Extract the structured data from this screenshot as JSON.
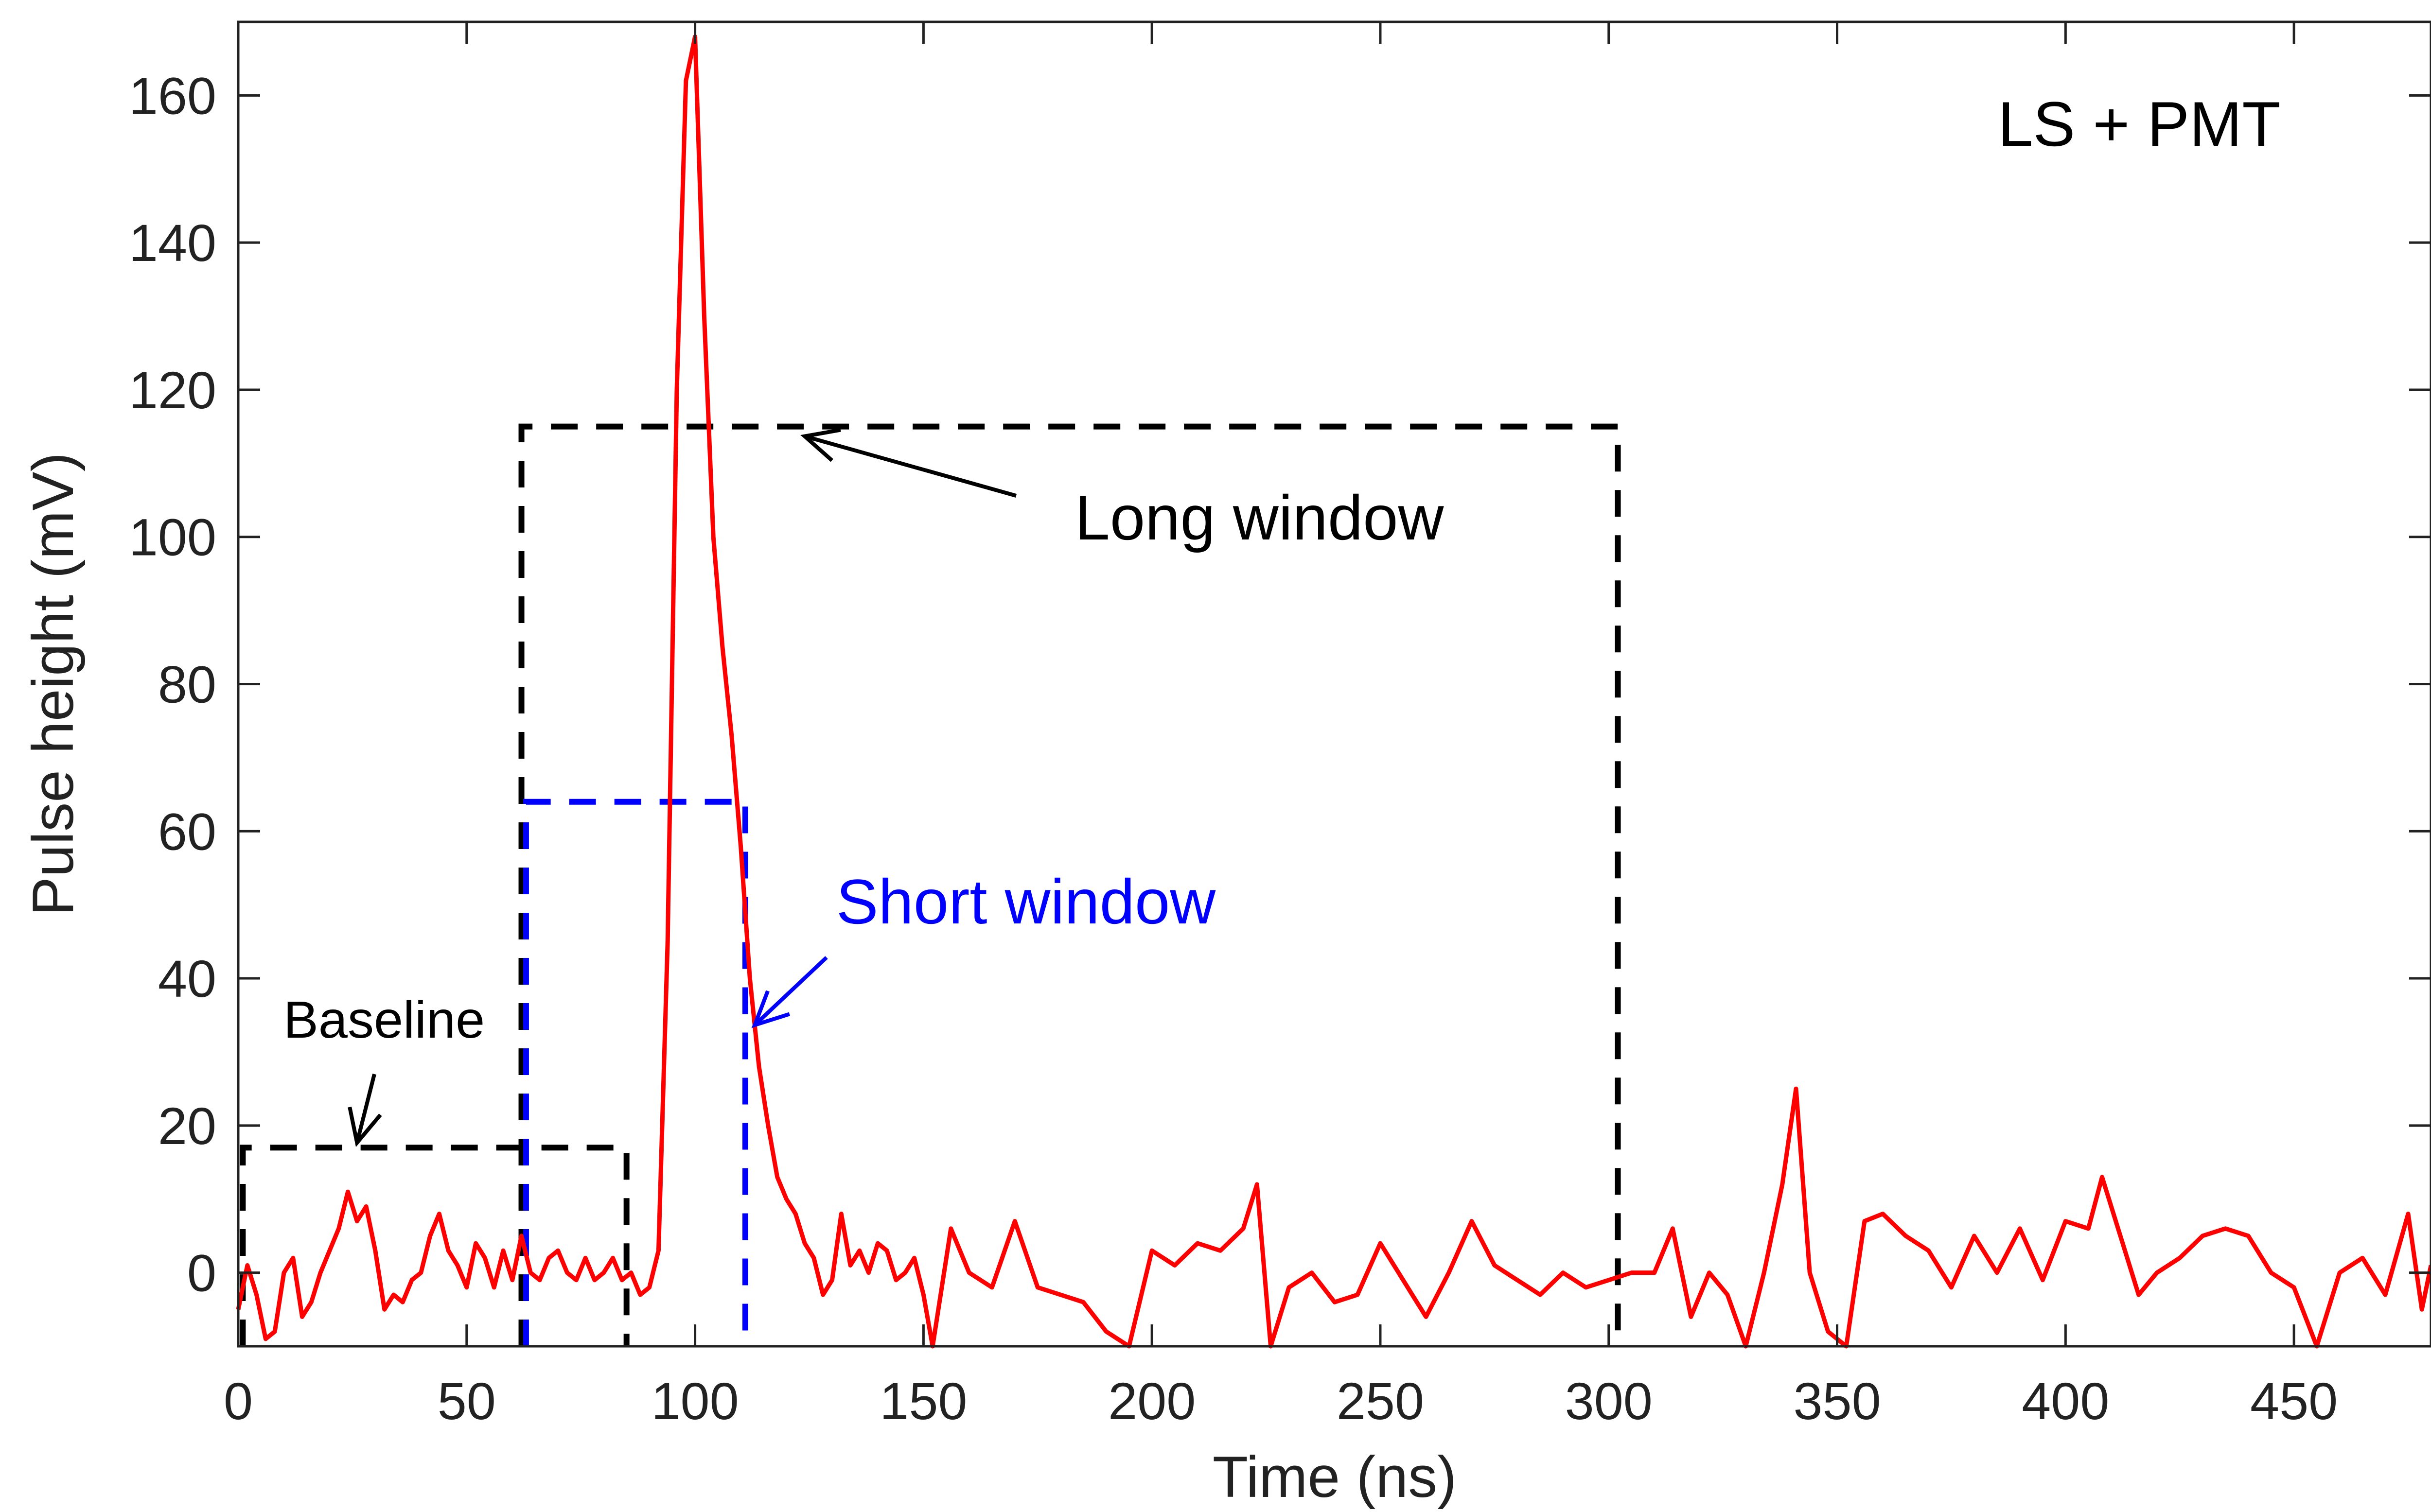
{
  "chart_data": {
    "type": "line",
    "title": "",
    "xlabel": "Time (ns)",
    "ylabel": "Pulse height (mV)",
    "xlim": [
      0,
      480
    ],
    "ylim": [
      -10,
      170
    ],
    "xticks": [
      0,
      50,
      100,
      150,
      200,
      250,
      300,
      350,
      400,
      450
    ],
    "yticks": [
      0,
      20,
      40,
      60,
      80,
      100,
      120,
      140,
      160
    ],
    "grid": false,
    "colors": {
      "signal": "#ff0000",
      "long_window": "#000000",
      "short_window": "#0000ff",
      "baseline": "#000000",
      "axes": "#222222"
    },
    "series": [
      {
        "name": "",
        "x": [
          0,
          2,
          4,
          6,
          8,
          10,
          12,
          14,
          16,
          18,
          20,
          22,
          24,
          26,
          28,
          30,
          32,
          34,
          36,
          38,
          40,
          42,
          44,
          46,
          48,
          50,
          52,
          54,
          56,
          58,
          60,
          62,
          64,
          66,
          68,
          70,
          72,
          74,
          76,
          78,
          80,
          82,
          84,
          86,
          88,
          90,
          92,
          94,
          96,
          98,
          100,
          102,
          104,
          106,
          108,
          110,
          112,
          114,
          116,
          118,
          120,
          122,
          124,
          126,
          128,
          130,
          132,
          134,
          136,
          138,
          140,
          142,
          144,
          146,
          148,
          150,
          152,
          154,
          156,
          158,
          160,
          165,
          170,
          175,
          180,
          185,
          190,
          195,
          200,
          205,
          210,
          215,
          220,
          223,
          226,
          230,
          235,
          240,
          245,
          250,
          255,
          260,
          265,
          270,
          275,
          280,
          285,
          290,
          295,
          300,
          305,
          310,
          314,
          318,
          322,
          326,
          330,
          334,
          338,
          341,
          344,
          348,
          352,
          356,
          360,
          365,
          370,
          375,
          380,
          385,
          390,
          395,
          400,
          405,
          408,
          412,
          416,
          420,
          425,
          430,
          435,
          440,
          445,
          450,
          455,
          460,
          465,
          470,
          475,
          478,
          480
        ],
        "values": [
          -5,
          1,
          -3,
          -9,
          -8,
          0,
          2,
          -6,
          -4,
          0,
          3,
          6,
          11,
          7,
          9,
          3,
          -5,
          -3,
          -4,
          -1,
          0,
          5,
          8,
          3,
          1,
          -2,
          4,
          2,
          -2,
          3,
          -1,
          5,
          0,
          -1,
          2,
          3,
          0,
          -1,
          2,
          -1,
          0,
          2,
          -1,
          0,
          -3,
          -2,
          3,
          45,
          120,
          162,
          168,
          130,
          100,
          85,
          73,
          58,
          40,
          28,
          20,
          13,
          10,
          8,
          4,
          2,
          -3,
          -1,
          8,
          1,
          3,
          0,
          4,
          3,
          -1,
          0,
          2,
          -3,
          -10,
          -2,
          6,
          3,
          0,
          -2,
          7,
          -2,
          -3,
          -4,
          -8,
          -10,
          3,
          1,
          4,
          3,
          6,
          12,
          -10,
          -2,
          0,
          -4,
          -3,
          4,
          -1,
          -6,
          0,
          7,
          1,
          -1,
          -3,
          0,
          -2,
          -1,
          0,
          0,
          6,
          -6,
          0,
          -3,
          -10,
          0,
          12,
          25,
          0,
          -8,
          -10,
          7,
          8,
          5,
          3,
          -2,
          5,
          0,
          6,
          -1,
          7,
          6,
          13,
          5,
          -3,
          0,
          2,
          5,
          6,
          5,
          0,
          -2,
          -10,
          0,
          2,
          -3,
          8,
          -5,
          1
        ]
      }
    ],
    "regions": [
      {
        "label": "Long window",
        "x": [
          62,
          302
        ],
        "y": [
          -10,
          115
        ]
      },
      {
        "label": "Short window",
        "x": [
          63,
          111
        ],
        "y": [
          -10,
          64
        ]
      },
      {
        "label": "Baseline",
        "x": [
          1,
          85
        ],
        "y": [
          -10,
          17
        ]
      }
    ],
    "annotations": [
      {
        "text": "LS + PMT"
      },
      {
        "text": "Long window",
        "arrow_to": [
          124,
          115
        ]
      },
      {
        "text": "Short window",
        "arrow_to": [
          112,
          33
        ]
      },
      {
        "text": "Baseline",
        "arrow_to": [
          26,
          17
        ]
      }
    ]
  }
}
